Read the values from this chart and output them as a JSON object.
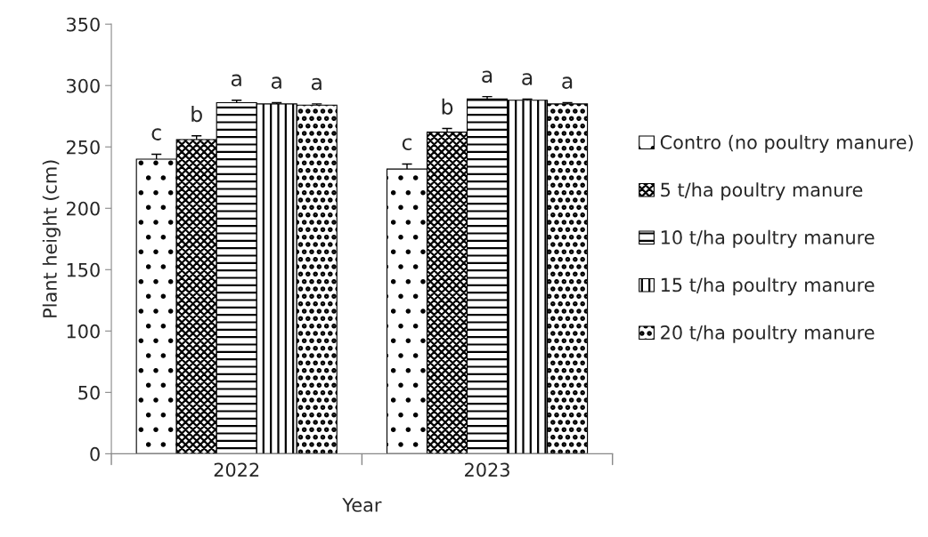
{
  "chart_data": {
    "type": "bar",
    "xlabel": "Year",
    "ylabel": "Plant height (cm)",
    "categories": [
      "2022",
      "2023"
    ],
    "series": [
      {
        "name": "Contro (no poultry manure)",
        "color": "#000000",
        "values": [
          240,
          232
        ],
        "errors": [
          4,
          4
        ],
        "value_labels": [
          "c",
          "c"
        ]
      },
      {
        "name": "5 t/ha poultry manure",
        "color": "#000000",
        "values": [
          256,
          262
        ],
        "errors": [
          3,
          3
        ],
        "value_labels": [
          "b",
          "b"
        ]
      },
      {
        "name": "10 t/ha poultry manure",
        "color": "#000000",
        "values": [
          286,
          289
        ],
        "errors": [
          2,
          2
        ],
        "value_labels": [
          "a",
          "a"
        ]
      },
      {
        "name": "15 t/ha poultry manure",
        "color": "#000000",
        "values": [
          285,
          288
        ],
        "errors": [
          1,
          1
        ],
        "value_labels": [
          "a",
          "a"
        ]
      },
      {
        "name": "20 t/ha poultry manure",
        "color": "#000000",
        "values": [
          284,
          285
        ],
        "errors": [
          1,
          1
        ],
        "value_labels": [
          "a",
          "a"
        ]
      }
    ],
    "ylim": [
      0,
      350
    ],
    "yticks": [
      0,
      50,
      100,
      150,
      200,
      250,
      300,
      350
    ],
    "grid": false,
    "legend": "right"
  }
}
